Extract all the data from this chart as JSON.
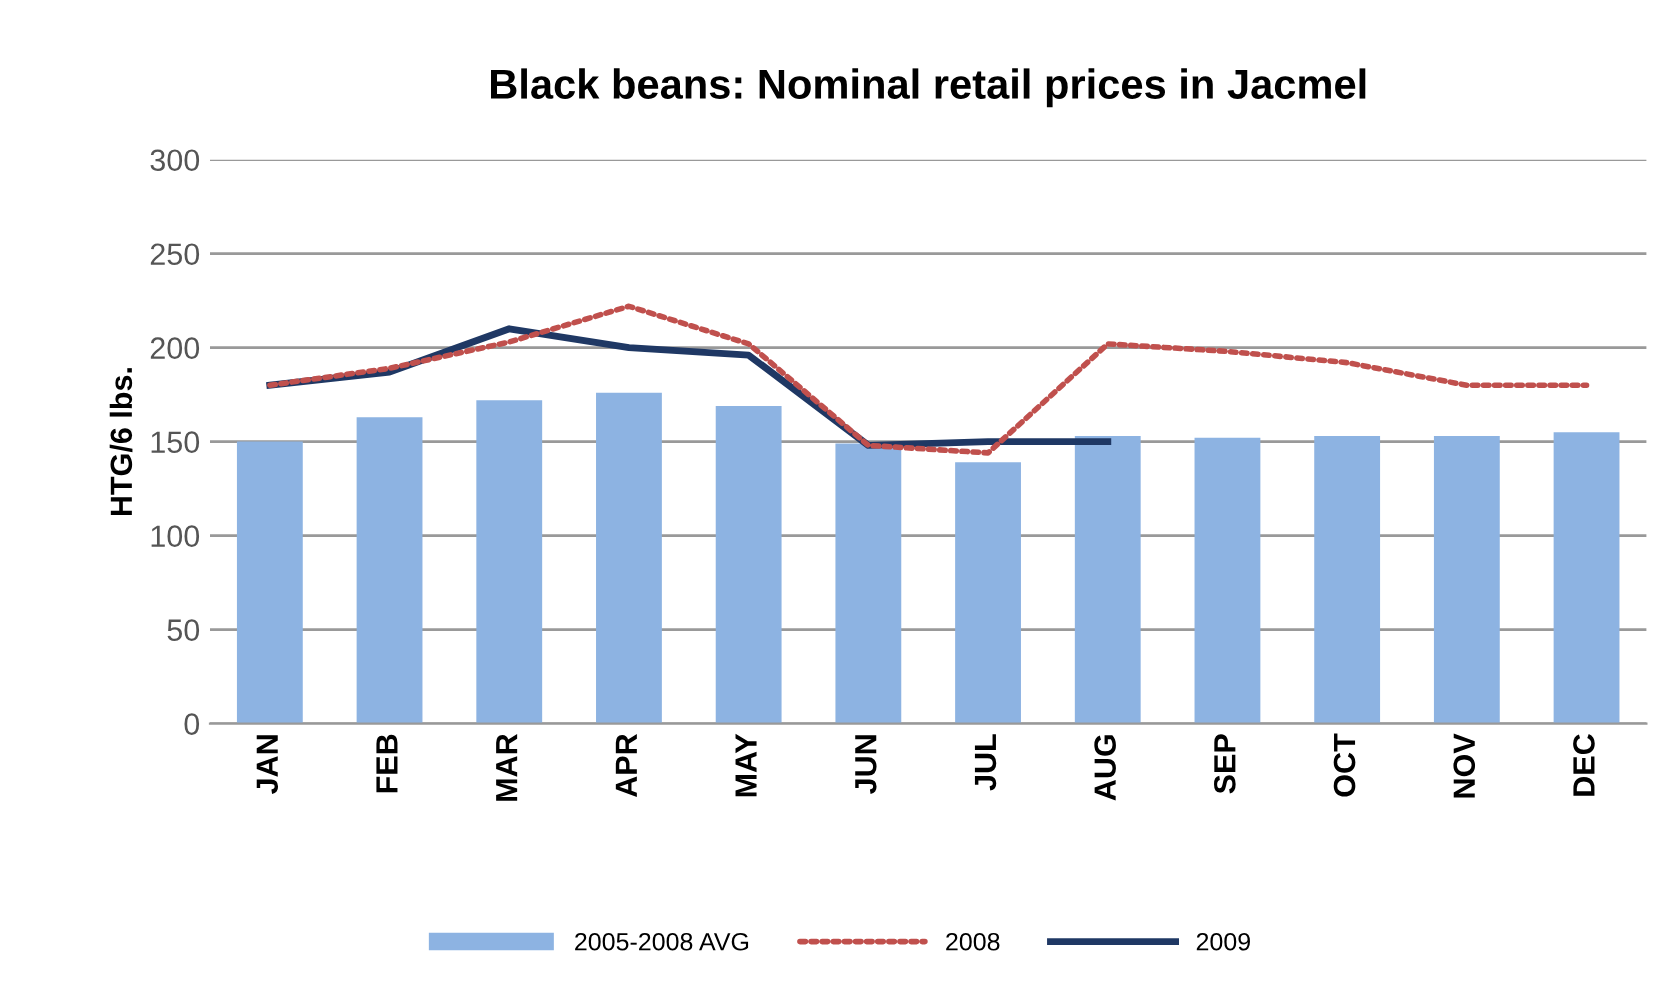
{
  "chart_data": {
    "type": "bar",
    "title": "Black beans: Nominal retail prices in Jacmel",
    "ylabel": "HTG/6 lbs.",
    "categories": [
      "JAN",
      "FEB",
      "MAR",
      "APR",
      "MAY",
      "JUN",
      "JUL",
      "AUG",
      "SEP",
      "OCT",
      "NOV",
      "DEC"
    ],
    "series": [
      {
        "name": "2005-2008 AVG",
        "color": "#8db3e2",
        "values": [
          150,
          163,
          172,
          176,
          169,
          149,
          139,
          153,
          152,
          153,
          153,
          155
        ]
      },
      {
        "name": "2008",
        "type": "line",
        "color": "#c0504d",
        "line_style": "dotted",
        "values": [
          180,
          189,
          203,
          222,
          202,
          148,
          144,
          202,
          198,
          192,
          180,
          180
        ]
      },
      {
        "name": "2009",
        "type": "line",
        "color": "#1f3864",
        "line_style": "solid",
        "values": [
          180,
          187,
          210,
          200,
          196,
          148,
          150,
          150,
          null,
          null,
          null,
          null
        ]
      }
    ],
    "ylim": [
      0,
      300
    ],
    "yticks": [
      0,
      50,
      100,
      150,
      200,
      250,
      300
    ],
    "grid": "y",
    "legend": "bottom"
  }
}
